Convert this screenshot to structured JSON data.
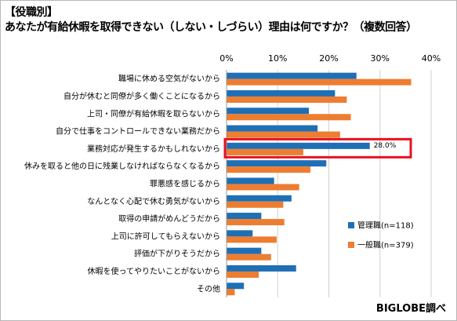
{
  "header": {
    "line1": "【役職別】",
    "line2": "あなたが有給休暇を取得できない（しない・しづらい）理由は何ですか？（複数回答）"
  },
  "source": "BIGLOBE調べ",
  "colors": {
    "manager": "#1f6fb5",
    "general": "#ed7d31",
    "highlight": "#e8101f",
    "grid": "#d0d0d0"
  },
  "chart_data": {
    "type": "bar",
    "orientation": "horizontal",
    "xlim": [
      0,
      40
    ],
    "ticks": [
      "0%",
      "10%",
      "20%",
      "30%",
      "40%"
    ],
    "tick_values": [
      0,
      10,
      20,
      30,
      40
    ],
    "categories": [
      "職場に休める空気がないから",
      "自分が休むと同僚が多く働くことになるから",
      "上司・同僚が有給休暇を取らないから",
      "自分で仕事をコントロールできない業務だから",
      "業務対応が発生するかもしれないから",
      "休みを取ると他の日に残業しなければならなくなるから",
      "罪悪感を感じるから",
      "なんとなく心配で休む勇気がないから",
      "取得の申請がめんどうだから",
      "上司に許可してもらえないから",
      "評価が下がりそうだから",
      "休暇を使ってやりたいことがないから",
      "その他"
    ],
    "series": [
      {
        "name": "管理職(n=118)",
        "values": [
          25.4,
          21.2,
          16.1,
          17.8,
          28.0,
          19.5,
          9.3,
          12.7,
          6.8,
          5.1,
          6.8,
          13.6,
          3.4
        ]
      },
      {
        "name": "一般職(n=379)",
        "values": [
          36.1,
          23.5,
          24.3,
          22.2,
          15.0,
          16.4,
          14.2,
          11.1,
          11.3,
          9.8,
          8.7,
          6.3,
          1.6
        ]
      }
    ],
    "annotation": {
      "category_index": 4,
      "series_index": 0,
      "label": "28.0%"
    },
    "legend_position": "right",
    "grid": true
  }
}
